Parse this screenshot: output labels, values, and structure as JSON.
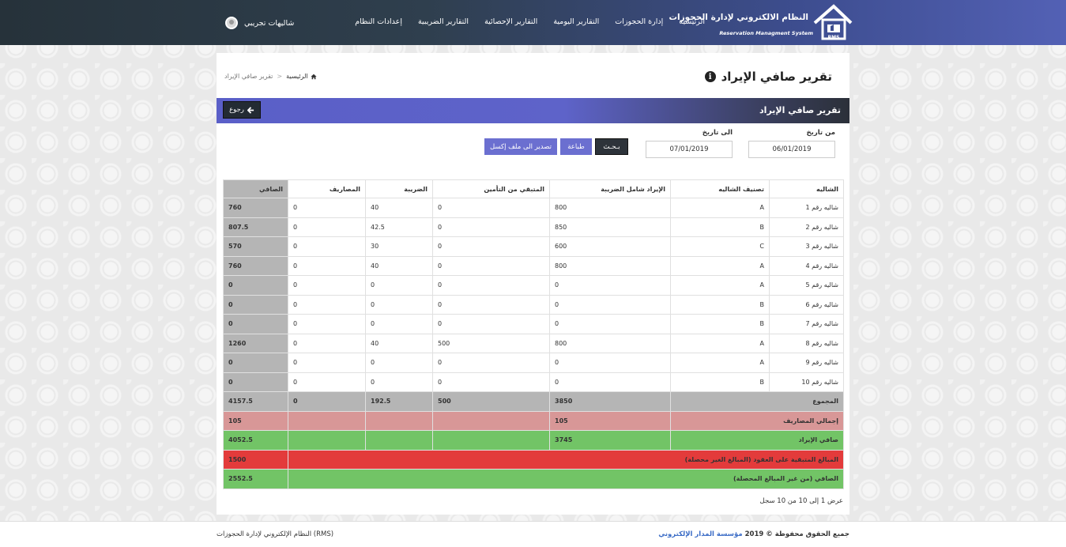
{
  "app": {
    "title": "النظام الالكتروني لإدارة الحجوزات",
    "subtitle": "Reservation Managment System",
    "logo_badge": "RMS"
  },
  "nav": {
    "items": [
      {
        "label": "الرئيسية"
      },
      {
        "label": "إدارة الحجوزات"
      },
      {
        "label": "التقارير اليومية"
      },
      {
        "label": "التقارير الإحصائية"
      },
      {
        "label": "التقارير الضريبية"
      },
      {
        "label": "إعدادات النظام"
      }
    ]
  },
  "user": {
    "name": "شاليهات تجريبي",
    "icon": "user-avatar-icon"
  },
  "page": {
    "title": "تقرير صافي الإيراد",
    "breadcrumb": {
      "home": "الرئيسية",
      "separator": ">",
      "current": "تقرير صافي الإيراد"
    },
    "section_title": "تقرير صافي الإيراد",
    "back_label": "رجوع"
  },
  "filters": {
    "from_label": "من تاريخ",
    "from_value": "06/01/2019",
    "to_label": "الى تاريخ",
    "to_value": "07/01/2019",
    "search_label": "بـحـث",
    "print_label": "طباعة",
    "export_label": "تصدير الى ملف إكسل"
  },
  "table": {
    "headers": [
      "الشاليه",
      "تصنيف الشاليه",
      "الإيراد شامل الضريبة",
      "المتبقي من التأمين",
      "الضريبة",
      "المصاريف",
      "الصافي"
    ],
    "rows": [
      [
        "شاليه رقم 1",
        "A",
        "800",
        "0",
        "40",
        "0",
        "760"
      ],
      [
        "شاليه رقم 2",
        "B",
        "850",
        "0",
        "42.5",
        "0",
        "807.5"
      ],
      [
        "شاليه رقم 3",
        "C",
        "600",
        "0",
        "30",
        "0",
        "570"
      ],
      [
        "شاليه رقم 4",
        "A",
        "800",
        "0",
        "40",
        "0",
        "760"
      ],
      [
        "شاليه رقم 5",
        "A",
        "0",
        "0",
        "0",
        "0",
        "0"
      ],
      [
        "شاليه رقم 6",
        "B",
        "0",
        "0",
        "0",
        "0",
        "0"
      ],
      [
        "شاليه رقم 7",
        "B",
        "0",
        "0",
        "0",
        "0",
        "0"
      ],
      [
        "شاليه رقم 8",
        "A",
        "800",
        "500",
        "40",
        "0",
        "1260"
      ],
      [
        "شاليه رقم 9",
        "A",
        "0",
        "0",
        "0",
        "0",
        "0"
      ],
      [
        "شاليه رقم 10",
        "B",
        "0",
        "0",
        "0",
        "0",
        "0"
      ]
    ],
    "total": {
      "label": "المجموع",
      "revenue": "3850",
      "insurance": "500",
      "tax": "192.5",
      "expenses": "0",
      "net": "4157.5"
    },
    "expenses_total": {
      "label": "إجمالي المصاريف",
      "revenue": "105",
      "net": "105"
    },
    "net_revenue": {
      "label": "صافي الإيراد",
      "revenue": "3745",
      "net": "4052.5"
    },
    "remaining": {
      "label": "المبالغ المتبقية على العقود (المبالغ الغير محصلة)",
      "net": "1500"
    },
    "final": {
      "label": "الصافي (من غير المبالغ المحصلة)",
      "net": "2552.5"
    },
    "info": "عرض 1 إلى 10 من 10 سجل"
  },
  "footer": {
    "copyright": "جميع الحقوق محفوظة © 2019",
    "company": "مؤسسة المدار الإلكتروني",
    "system": "النظام الإلكتروني لإدارة الحجوزات (RMS)"
  },
  "colors": {
    "accent": "#5e63c9",
    "dark": "#2d333a",
    "total_row": "#b5b5b5",
    "expenses_row": "#d89797",
    "net_row": "#72c466",
    "remaining_row": "#e33b3b"
  }
}
